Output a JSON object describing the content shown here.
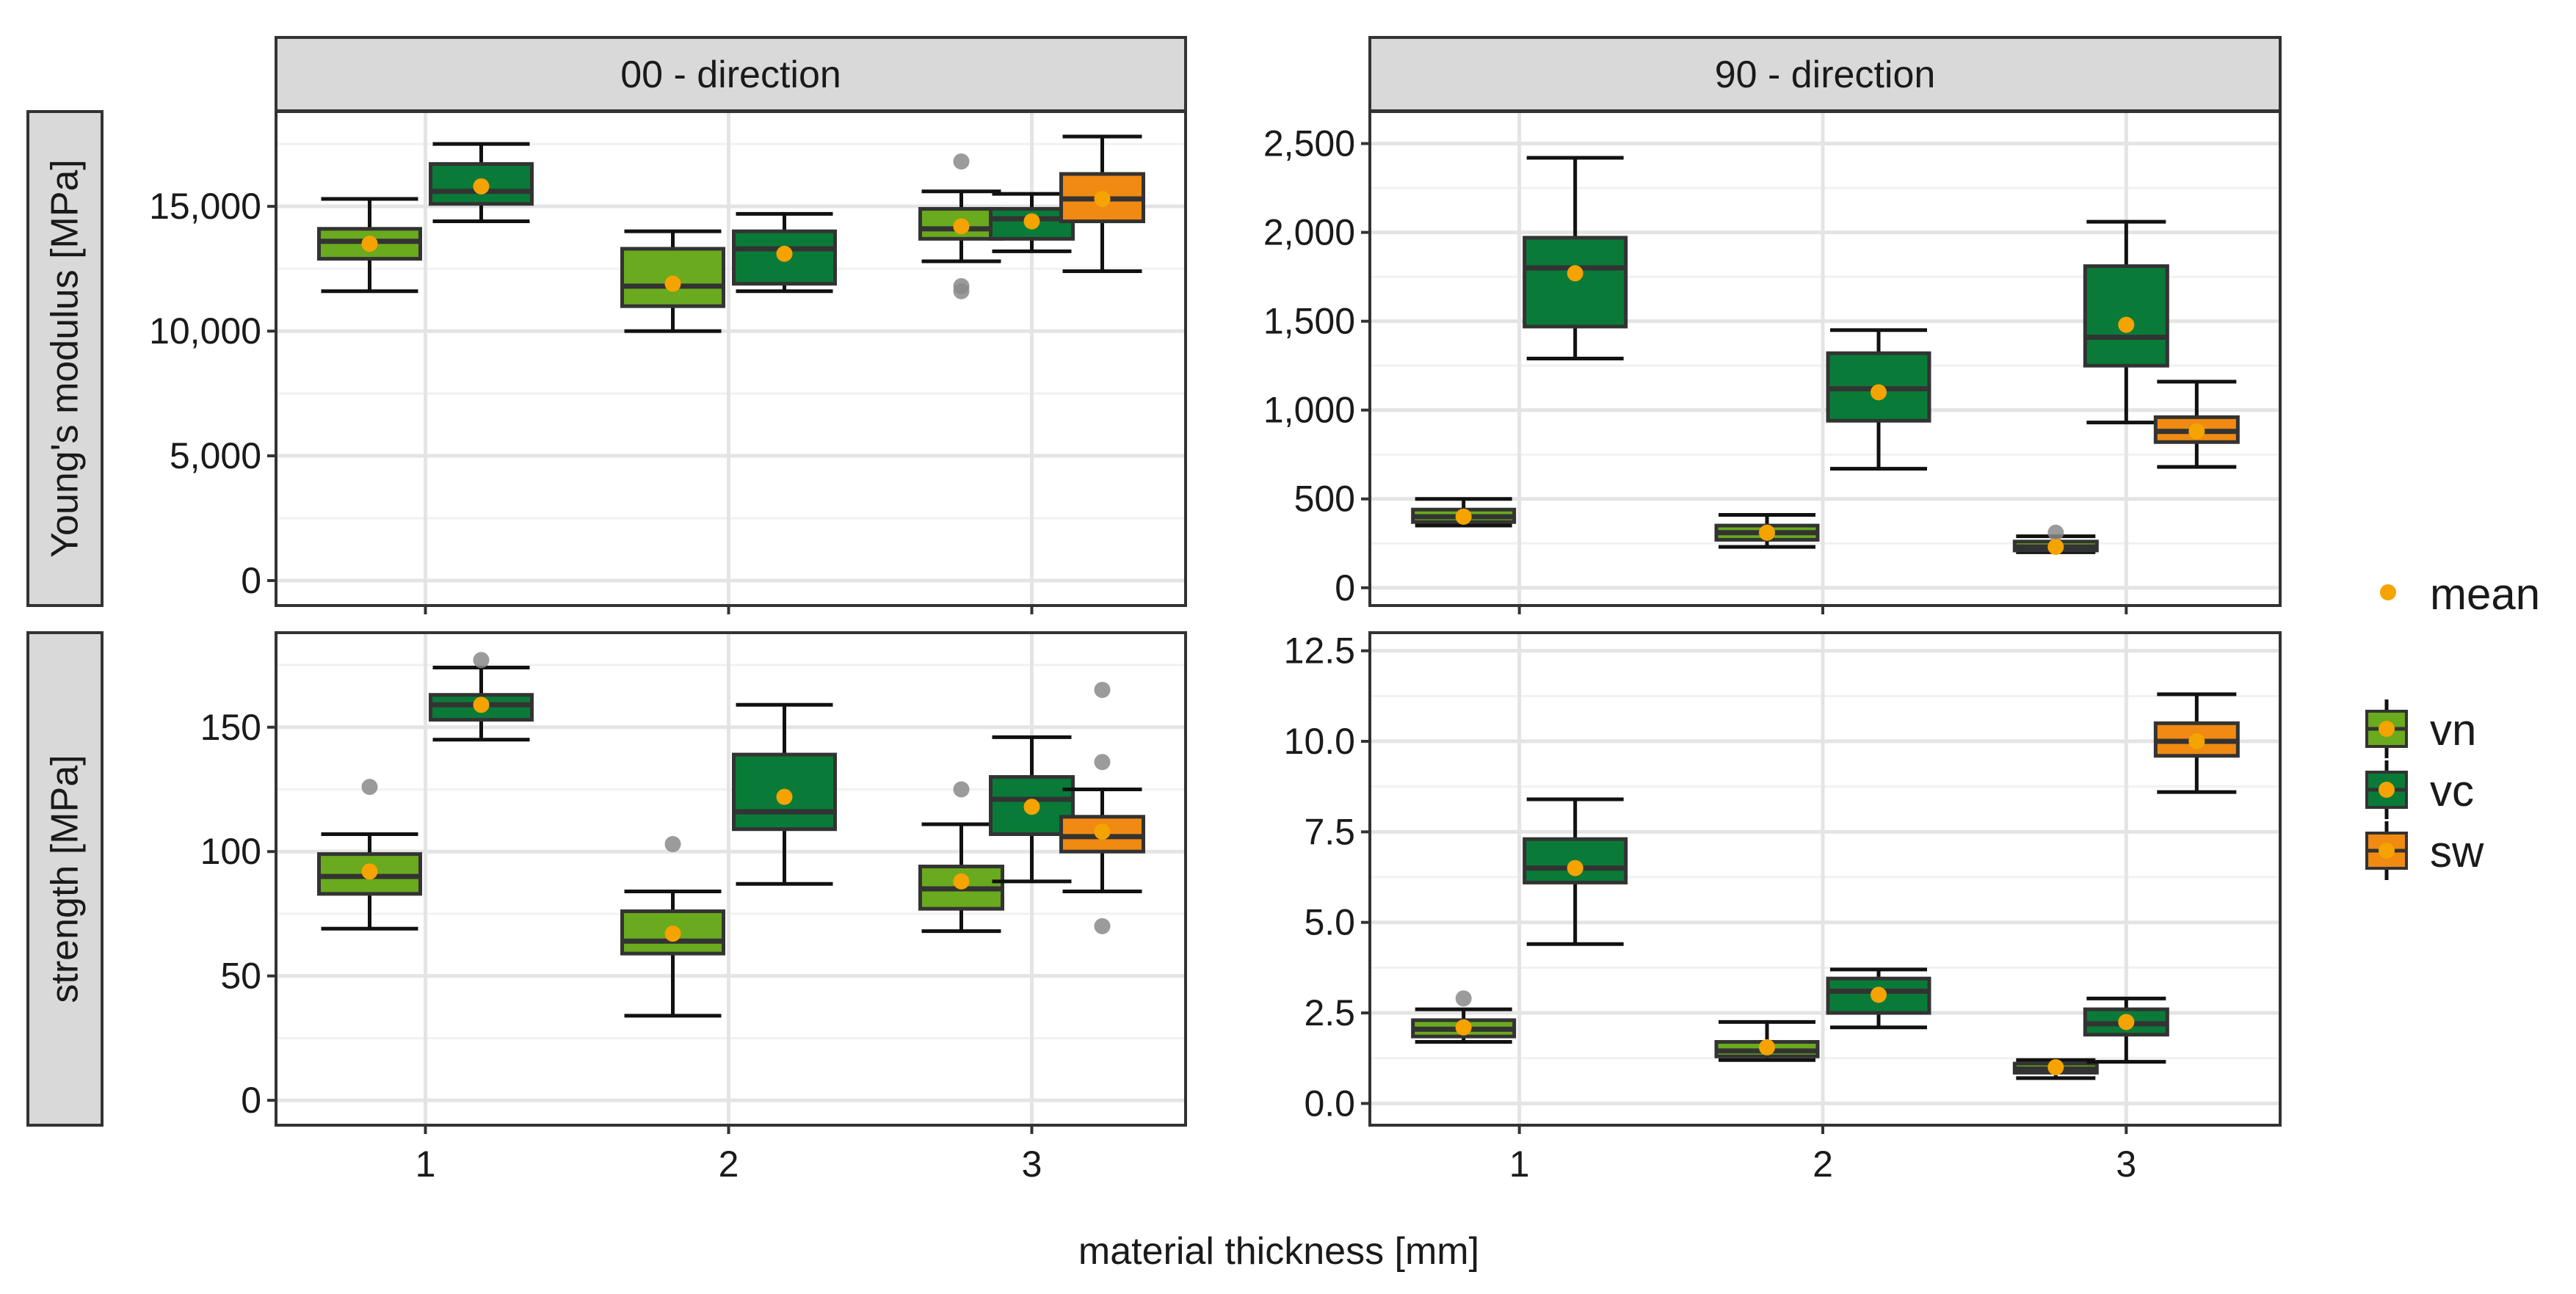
{
  "chart_data": {
    "type": "boxplot",
    "xlabel": "material thickness [mm]",
    "categories": [
      "1",
      "2",
      "3"
    ],
    "column_strips": [
      "00 - direction",
      "90 - direction"
    ],
    "row_strips": [
      "Young's modulus [MPa]",
      "strength [MPa]"
    ],
    "legend": {
      "mean_label": "mean",
      "mean_color": "#f5a300",
      "groups": [
        {
          "name": "vn",
          "color": "#6aaa1e"
        },
        {
          "name": "vc",
          "color": "#0a7a38"
        },
        {
          "name": "sw",
          "color": "#f08a12"
        }
      ]
    },
    "panels": [
      {
        "row": 0,
        "col": 0,
        "ylim": [
          -1000,
          18800
        ],
        "yticks": [
          0,
          5000,
          10000,
          15000
        ],
        "ytick_labels": [
          "0",
          "5,000",
          "10,000",
          "15,000"
        ],
        "boxes": [
          {
            "category": "1",
            "group": "vn",
            "whislo": 11600,
            "q1": 12900,
            "med": 13600,
            "q3": 14100,
            "whishi": 15300,
            "mean": 13500,
            "outliers": []
          },
          {
            "category": "1",
            "group": "vc",
            "whislo": 14400,
            "q1": 15100,
            "med": 15600,
            "q3": 16700,
            "whishi": 17500,
            "mean": 15800,
            "outliers": []
          },
          {
            "category": "2",
            "group": "vn",
            "whislo": 10000,
            "q1": 11000,
            "med": 11800,
            "q3": 13300,
            "whishi": 14000,
            "mean": 11900,
            "outliers": []
          },
          {
            "category": "2",
            "group": "vc",
            "whislo": 11600,
            "q1": 11900,
            "med": 13300,
            "q3": 14000,
            "whishi": 14700,
            "mean": 13100,
            "outliers": []
          },
          {
            "category": "3",
            "group": "vn",
            "whislo": 12800,
            "q1": 13700,
            "med": 14100,
            "q3": 14900,
            "whishi": 15600,
            "mean": 14200,
            "outliers": [
              11600,
              11800,
              16800
            ]
          },
          {
            "category": "3",
            "group": "vc",
            "whislo": 13200,
            "q1": 13700,
            "med": 14500,
            "q3": 14900,
            "whishi": 15500,
            "mean": 14400,
            "outliers": []
          },
          {
            "category": "3",
            "group": "sw",
            "whislo": 12400,
            "q1": 14400,
            "med": 15300,
            "q3": 16300,
            "whishi": 17800,
            "mean": 15300,
            "outliers": []
          }
        ]
      },
      {
        "row": 0,
        "col": 1,
        "ylim": [
          -100,
          2680
        ],
        "yticks": [
          0,
          500,
          1000,
          1500,
          2000,
          2500
        ],
        "ytick_labels": [
          "0",
          "500",
          "1,000",
          "1,500",
          "2,000",
          "2,500"
        ],
        "boxes": [
          {
            "category": "1",
            "group": "vn",
            "whislo": 350,
            "q1": 370,
            "med": 400,
            "q3": 440,
            "whishi": 500,
            "mean": 400,
            "outliers": []
          },
          {
            "category": "1",
            "group": "vc",
            "whislo": 1290,
            "q1": 1470,
            "med": 1800,
            "q3": 1970,
            "whishi": 2420,
            "mean": 1770,
            "outliers": []
          },
          {
            "category": "2",
            "group": "vn",
            "whislo": 230,
            "q1": 270,
            "med": 310,
            "q3": 350,
            "whishi": 410,
            "mean": 310,
            "outliers": []
          },
          {
            "category": "2",
            "group": "vc",
            "whislo": 670,
            "q1": 940,
            "med": 1120,
            "q3": 1320,
            "whishi": 1450,
            "mean": 1100,
            "outliers": []
          },
          {
            "category": "3",
            "group": "vn",
            "whislo": 200,
            "q1": 210,
            "med": 230,
            "q3": 260,
            "whishi": 290,
            "mean": 230,
            "outliers": [
              310
            ]
          },
          {
            "category": "3",
            "group": "vc",
            "whislo": 930,
            "q1": 1250,
            "med": 1410,
            "q3": 1810,
            "whishi": 2060,
            "mean": 1480,
            "outliers": []
          },
          {
            "category": "3",
            "group": "sw",
            "whislo": 680,
            "q1": 820,
            "med": 880,
            "q3": 960,
            "whishi": 1160,
            "mean": 880,
            "outliers": []
          }
        ]
      },
      {
        "row": 1,
        "col": 0,
        "ylim": [
          -10,
          188
        ],
        "yticks": [
          0,
          50,
          100,
          150
        ],
        "ytick_labels": [
          "0",
          "50",
          "100",
          "150"
        ],
        "boxes": [
          {
            "category": "1",
            "group": "vn",
            "whislo": 69,
            "q1": 83,
            "med": 90,
            "q3": 99,
            "whishi": 107,
            "mean": 92,
            "outliers": [
              126
            ]
          },
          {
            "category": "1",
            "group": "vc",
            "whislo": 145,
            "q1": 153,
            "med": 159,
            "q3": 163,
            "whishi": 174,
            "mean": 159,
            "outliers": [
              177
            ]
          },
          {
            "category": "2",
            "group": "vn",
            "whislo": 34,
            "q1": 59,
            "med": 64,
            "q3": 76,
            "whishi": 84,
            "mean": 67,
            "outliers": [
              103
            ]
          },
          {
            "category": "2",
            "group": "vc",
            "whislo": 87,
            "q1": 109,
            "med": 116,
            "q3": 139,
            "whishi": 159,
            "mean": 122,
            "outliers": []
          },
          {
            "category": "3",
            "group": "vn",
            "whislo": 68,
            "q1": 77,
            "med": 85,
            "q3": 94,
            "whishi": 111,
            "mean": 88,
            "outliers": [
              125
            ]
          },
          {
            "category": "3",
            "group": "vc",
            "whislo": 88,
            "q1": 107,
            "med": 121,
            "q3": 130,
            "whishi": 146,
            "mean": 118,
            "outliers": []
          },
          {
            "category": "3",
            "group": "sw",
            "whislo": 84,
            "q1": 100,
            "med": 106,
            "q3": 114,
            "whishi": 125,
            "mean": 108,
            "outliers": [
              70,
              136,
              165
            ]
          }
        ]
      },
      {
        "row": 1,
        "col": 1,
        "ylim": [
          -0.6,
          13.0
        ],
        "yticks": [
          0,
          2.5,
          5,
          7.5,
          10,
          12.5
        ],
        "ytick_labels": [
          "0.0",
          "2.5",
          "5.0",
          "7.5",
          "10.0",
          "12.5"
        ],
        "boxes": [
          {
            "category": "1",
            "group": "vn",
            "whislo": 1.7,
            "q1": 1.85,
            "med": 2.05,
            "q3": 2.3,
            "whishi": 2.6,
            "mean": 2.1,
            "outliers": [
              2.9
            ]
          },
          {
            "category": "1",
            "group": "vc",
            "whislo": 4.4,
            "q1": 6.1,
            "med": 6.5,
            "q3": 7.3,
            "whishi": 8.4,
            "mean": 6.5,
            "outliers": []
          },
          {
            "category": "2",
            "group": "vn",
            "whislo": 1.2,
            "q1": 1.3,
            "med": 1.45,
            "q3": 1.7,
            "whishi": 2.25,
            "mean": 1.55,
            "outliers": []
          },
          {
            "category": "2",
            "group": "vc",
            "whislo": 2.1,
            "q1": 2.5,
            "med": 3.1,
            "q3": 3.45,
            "whishi": 3.7,
            "mean": 3.0,
            "outliers": []
          },
          {
            "category": "3",
            "group": "vn",
            "whislo": 0.7,
            "q1": 0.85,
            "med": 0.95,
            "q3": 1.1,
            "whishi": 1.2,
            "mean": 1.0,
            "outliers": []
          },
          {
            "category": "3",
            "group": "vc",
            "whislo": 1.15,
            "q1": 1.9,
            "med": 2.2,
            "q3": 2.6,
            "whishi": 2.9,
            "mean": 2.25,
            "outliers": []
          },
          {
            "category": "3",
            "group": "sw",
            "whislo": 8.6,
            "q1": 9.6,
            "med": 10.0,
            "q3": 10.5,
            "whishi": 11.3,
            "mean": 10.0,
            "outliers": []
          }
        ]
      }
    ]
  }
}
